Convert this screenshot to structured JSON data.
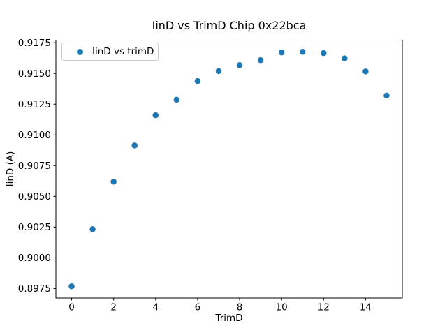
{
  "window": {
    "background": "#ffffff"
  },
  "chart_data": {
    "type": "scatter",
    "title": "IinD vs TrimD Chip 0x22bca",
    "xlabel": "TrimD",
    "ylabel": "IinD (A)",
    "legend": {
      "position": "upper left",
      "entries": [
        "IinD vs trimD"
      ]
    },
    "series": [
      {
        "name": "IinD vs trimD",
        "marker": "circle",
        "color": "#1f77b4",
        "x": [
          0,
          1,
          2,
          3,
          4,
          5,
          6,
          7,
          8,
          9,
          10,
          11,
          12,
          13,
          14,
          15
        ],
        "y": [
          0.89768,
          0.90233,
          0.9062,
          0.90914,
          0.9116,
          0.91286,
          0.91438,
          0.91519,
          0.91567,
          0.91608,
          0.9167,
          0.91676,
          0.91665,
          0.91623,
          0.91516,
          0.9132
        ]
      }
    ],
    "xlim": [
      -0.75,
      15.75
    ],
    "ylim": [
      0.89673,
      0.91771
    ],
    "xticks": {
      "values": [
        0,
        2,
        4,
        6,
        8,
        10,
        12,
        14
      ],
      "labels": [
        "0",
        "2",
        "4",
        "6",
        "8",
        "10",
        "12",
        "14"
      ]
    },
    "yticks": {
      "values": [
        0.8975,
        0.9,
        0.9025,
        0.905,
        0.9075,
        0.91,
        0.9125,
        0.915,
        0.9175
      ],
      "labels": [
        "0.8975",
        "0.9000",
        "0.9025",
        "0.9050",
        "0.9075",
        "0.9100",
        "0.9125",
        "0.9150",
        "0.9175"
      ]
    },
    "grid": false,
    "axis_color": "#000000",
    "tick_color": "#000000",
    "marker_size_px": 8.5
  }
}
